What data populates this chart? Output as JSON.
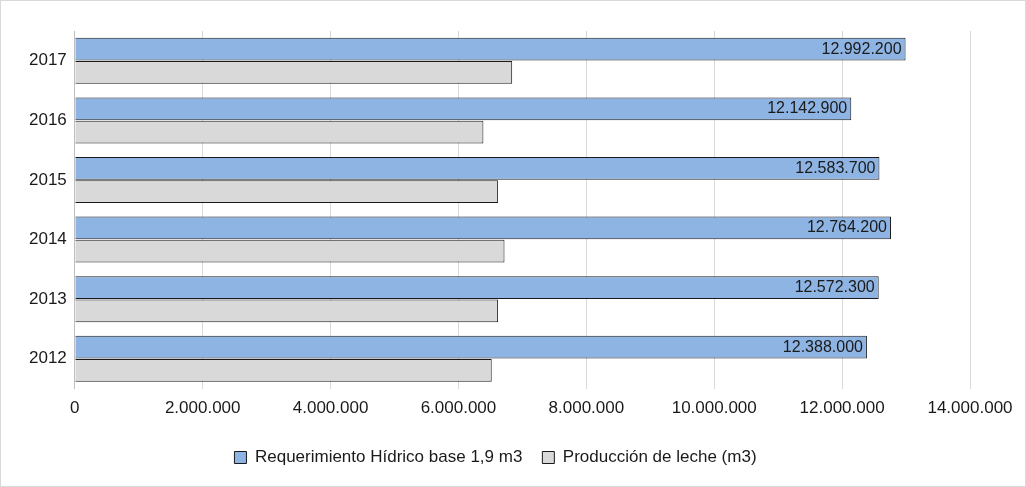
{
  "chart_data": {
    "type": "bar",
    "orientation": "horizontal",
    "categories": [
      "2017",
      "2016",
      "2015",
      "2014",
      "2013",
      "2012"
    ],
    "series": [
      {
        "name": "Requerimiento Hídrico base 1,9 m3",
        "color": "#8eb4e3",
        "values": [
          12992200,
          12142900,
          12583700,
          12764200,
          12572300,
          12388000
        ],
        "value_labels": [
          "12.992.200",
          "12.142.900",
          "12.583.700",
          "12.764.200",
          "12.572.300",
          "12.388.000"
        ]
      },
      {
        "name": "Producción de leche (m3)",
        "color": "#d9d9d9",
        "values": [
          6840000,
          6390000,
          6620000,
          6720000,
          6620000,
          6520000
        ]
      }
    ],
    "xlim": [
      0,
      14000000
    ],
    "xticks": [
      {
        "value": 0,
        "label": "0"
      },
      {
        "value": 2000000,
        "label": "2.000.000"
      },
      {
        "value": 4000000,
        "label": "4.000.000"
      },
      {
        "value": 6000000,
        "label": "6.000.000"
      },
      {
        "value": 8000000,
        "label": "8.000.000"
      },
      {
        "value": 10000000,
        "label": "10.000.000"
      },
      {
        "value": 12000000,
        "label": "12.000.000"
      },
      {
        "value": 14000000,
        "label": "14.000.000"
      }
    ],
    "grid": "x",
    "legend": "bottom"
  }
}
